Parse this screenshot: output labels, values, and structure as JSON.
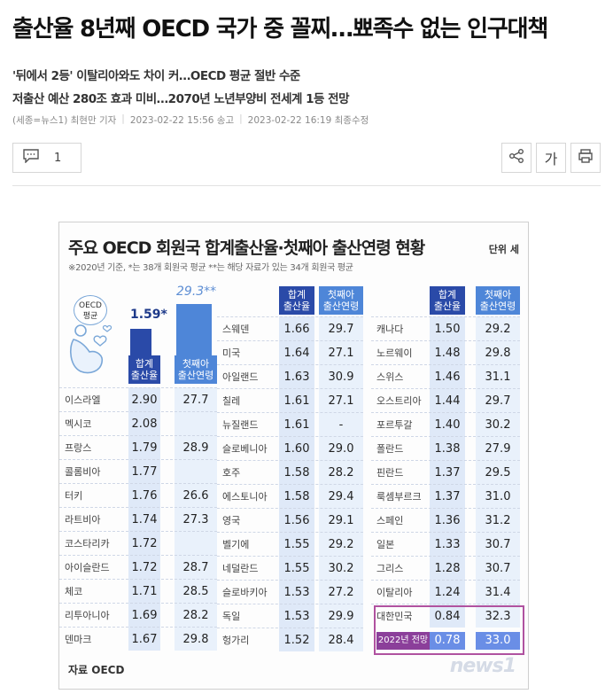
{
  "article": {
    "headline": "출산율 8년째 OECD 국가 중 꼴찌…뾰족수 없는 인구대책",
    "subtitle1": "'뒤에서 2등' 이탈리아와도 차이 커…OECD 평균 절반 수준",
    "subtitle2": "저출산 예산 280조 효과 미비…2070년 노년부양비 전세계 1등 전망",
    "byline": "(세종=뉴스1) 최현만 기자",
    "published": "2023-02-22 15:56 송고",
    "modified": "2023-02-22 16:19 최종수정"
  },
  "toolbar": {
    "comment_count": "1",
    "font_label": "가",
    "icons": [
      "comment-icon",
      "share-icon",
      "font-size-icon",
      "print-icon"
    ]
  },
  "infographic": {
    "title": "주요 OECD 회원국 합계출산율·첫째아 출산연령 현황",
    "unit": "단위 세",
    "note": "※2020년 기준, *는 38개 회원국 평균 **는 해당 자료가 있는 34개 회원국 평균",
    "oecd_label_line1": "OECD",
    "oecd_label_line2": "평균",
    "oecd_avg_fertility": "1.59*",
    "oecd_avg_age": "29.3**",
    "col_fertility_line1": "합계",
    "col_fertility_line2": "출산율",
    "col_age_line1": "첫째아",
    "col_age_line2": "출산연령",
    "source": "자료 OECD",
    "logo": "news1",
    "korea_badge": "2022년 전망",
    "korea_projection": {
      "fertility": "0.78",
      "age": "33.0"
    },
    "colors": {
      "dark_blue": "#2a4aa8",
      "light_blue": "#4e86d8",
      "highlight": "#b052a0"
    },
    "table_left": [
      {
        "country": "이스라엘",
        "fertility": "2.90",
        "age": "27.7"
      },
      {
        "country": "멕시코",
        "fertility": "2.08",
        "age": ""
      },
      {
        "country": "프랑스",
        "fertility": "1.79",
        "age": "28.9"
      },
      {
        "country": "콜롬비아",
        "fertility": "1.77",
        "age": ""
      },
      {
        "country": "터키",
        "fertility": "1.76",
        "age": "26.6"
      },
      {
        "country": "라트비아",
        "fertility": "1.74",
        "age": "27.3"
      },
      {
        "country": "코스타리카",
        "fertility": "1.72",
        "age": ""
      },
      {
        "country": "아이슬란드",
        "fertility": "1.72",
        "age": "28.7"
      },
      {
        "country": "체코",
        "fertility": "1.71",
        "age": "28.5"
      },
      {
        "country": "리투아니아",
        "fertility": "1.69",
        "age": "28.2"
      },
      {
        "country": "덴마크",
        "fertility": "1.67",
        "age": "29.8"
      }
    ],
    "table_mid": [
      {
        "country": "스웨덴",
        "fertility": "1.66",
        "age": "29.7"
      },
      {
        "country": "미국",
        "fertility": "1.64",
        "age": "27.1"
      },
      {
        "country": "아일랜드",
        "fertility": "1.63",
        "age": "30.9"
      },
      {
        "country": "칠레",
        "fertility": "1.61",
        "age": "27.1"
      },
      {
        "country": "뉴질랜드",
        "fertility": "1.61",
        "age": "-"
      },
      {
        "country": "슬로베니아",
        "fertility": "1.60",
        "age": "29.0"
      },
      {
        "country": "호주",
        "fertility": "1.58",
        "age": "28.2"
      },
      {
        "country": "에스토니아",
        "fertility": "1.58",
        "age": "29.4"
      },
      {
        "country": "영국",
        "fertility": "1.56",
        "age": "29.1"
      },
      {
        "country": "벨기에",
        "fertility": "1.55",
        "age": "29.2"
      },
      {
        "country": "네덜란드",
        "fertility": "1.55",
        "age": "30.2"
      },
      {
        "country": "슬로바키아",
        "fertility": "1.53",
        "age": "27.2"
      },
      {
        "country": "독일",
        "fertility": "1.53",
        "age": "29.9"
      },
      {
        "country": "헝가리",
        "fertility": "1.52",
        "age": "28.4"
      }
    ],
    "table_right": [
      {
        "country": "캐나다",
        "fertility": "1.50",
        "age": "29.2"
      },
      {
        "country": "노르웨이",
        "fertility": "1.48",
        "age": "29.8"
      },
      {
        "country": "스위스",
        "fertility": "1.46",
        "age": "31.1"
      },
      {
        "country": "오스트리아",
        "fertility": "1.44",
        "age": "29.7"
      },
      {
        "country": "포르투갈",
        "fertility": "1.40",
        "age": "30.2"
      },
      {
        "country": "폴란드",
        "fertility": "1.38",
        "age": "27.9"
      },
      {
        "country": "핀란드",
        "fertility": "1.37",
        "age": "29.5"
      },
      {
        "country": "룩셈부르크",
        "fertility": "1.37",
        "age": "31.0"
      },
      {
        "country": "스페인",
        "fertility": "1.36",
        "age": "31.2"
      },
      {
        "country": "일본",
        "fertility": "1.33",
        "age": "30.7"
      },
      {
        "country": "그리스",
        "fertility": "1.28",
        "age": "30.7"
      },
      {
        "country": "이탈리아",
        "fertility": "1.24",
        "age": "31.4"
      },
      {
        "country": "대한민국",
        "fertility": "0.84",
        "age": "32.3"
      }
    ]
  }
}
